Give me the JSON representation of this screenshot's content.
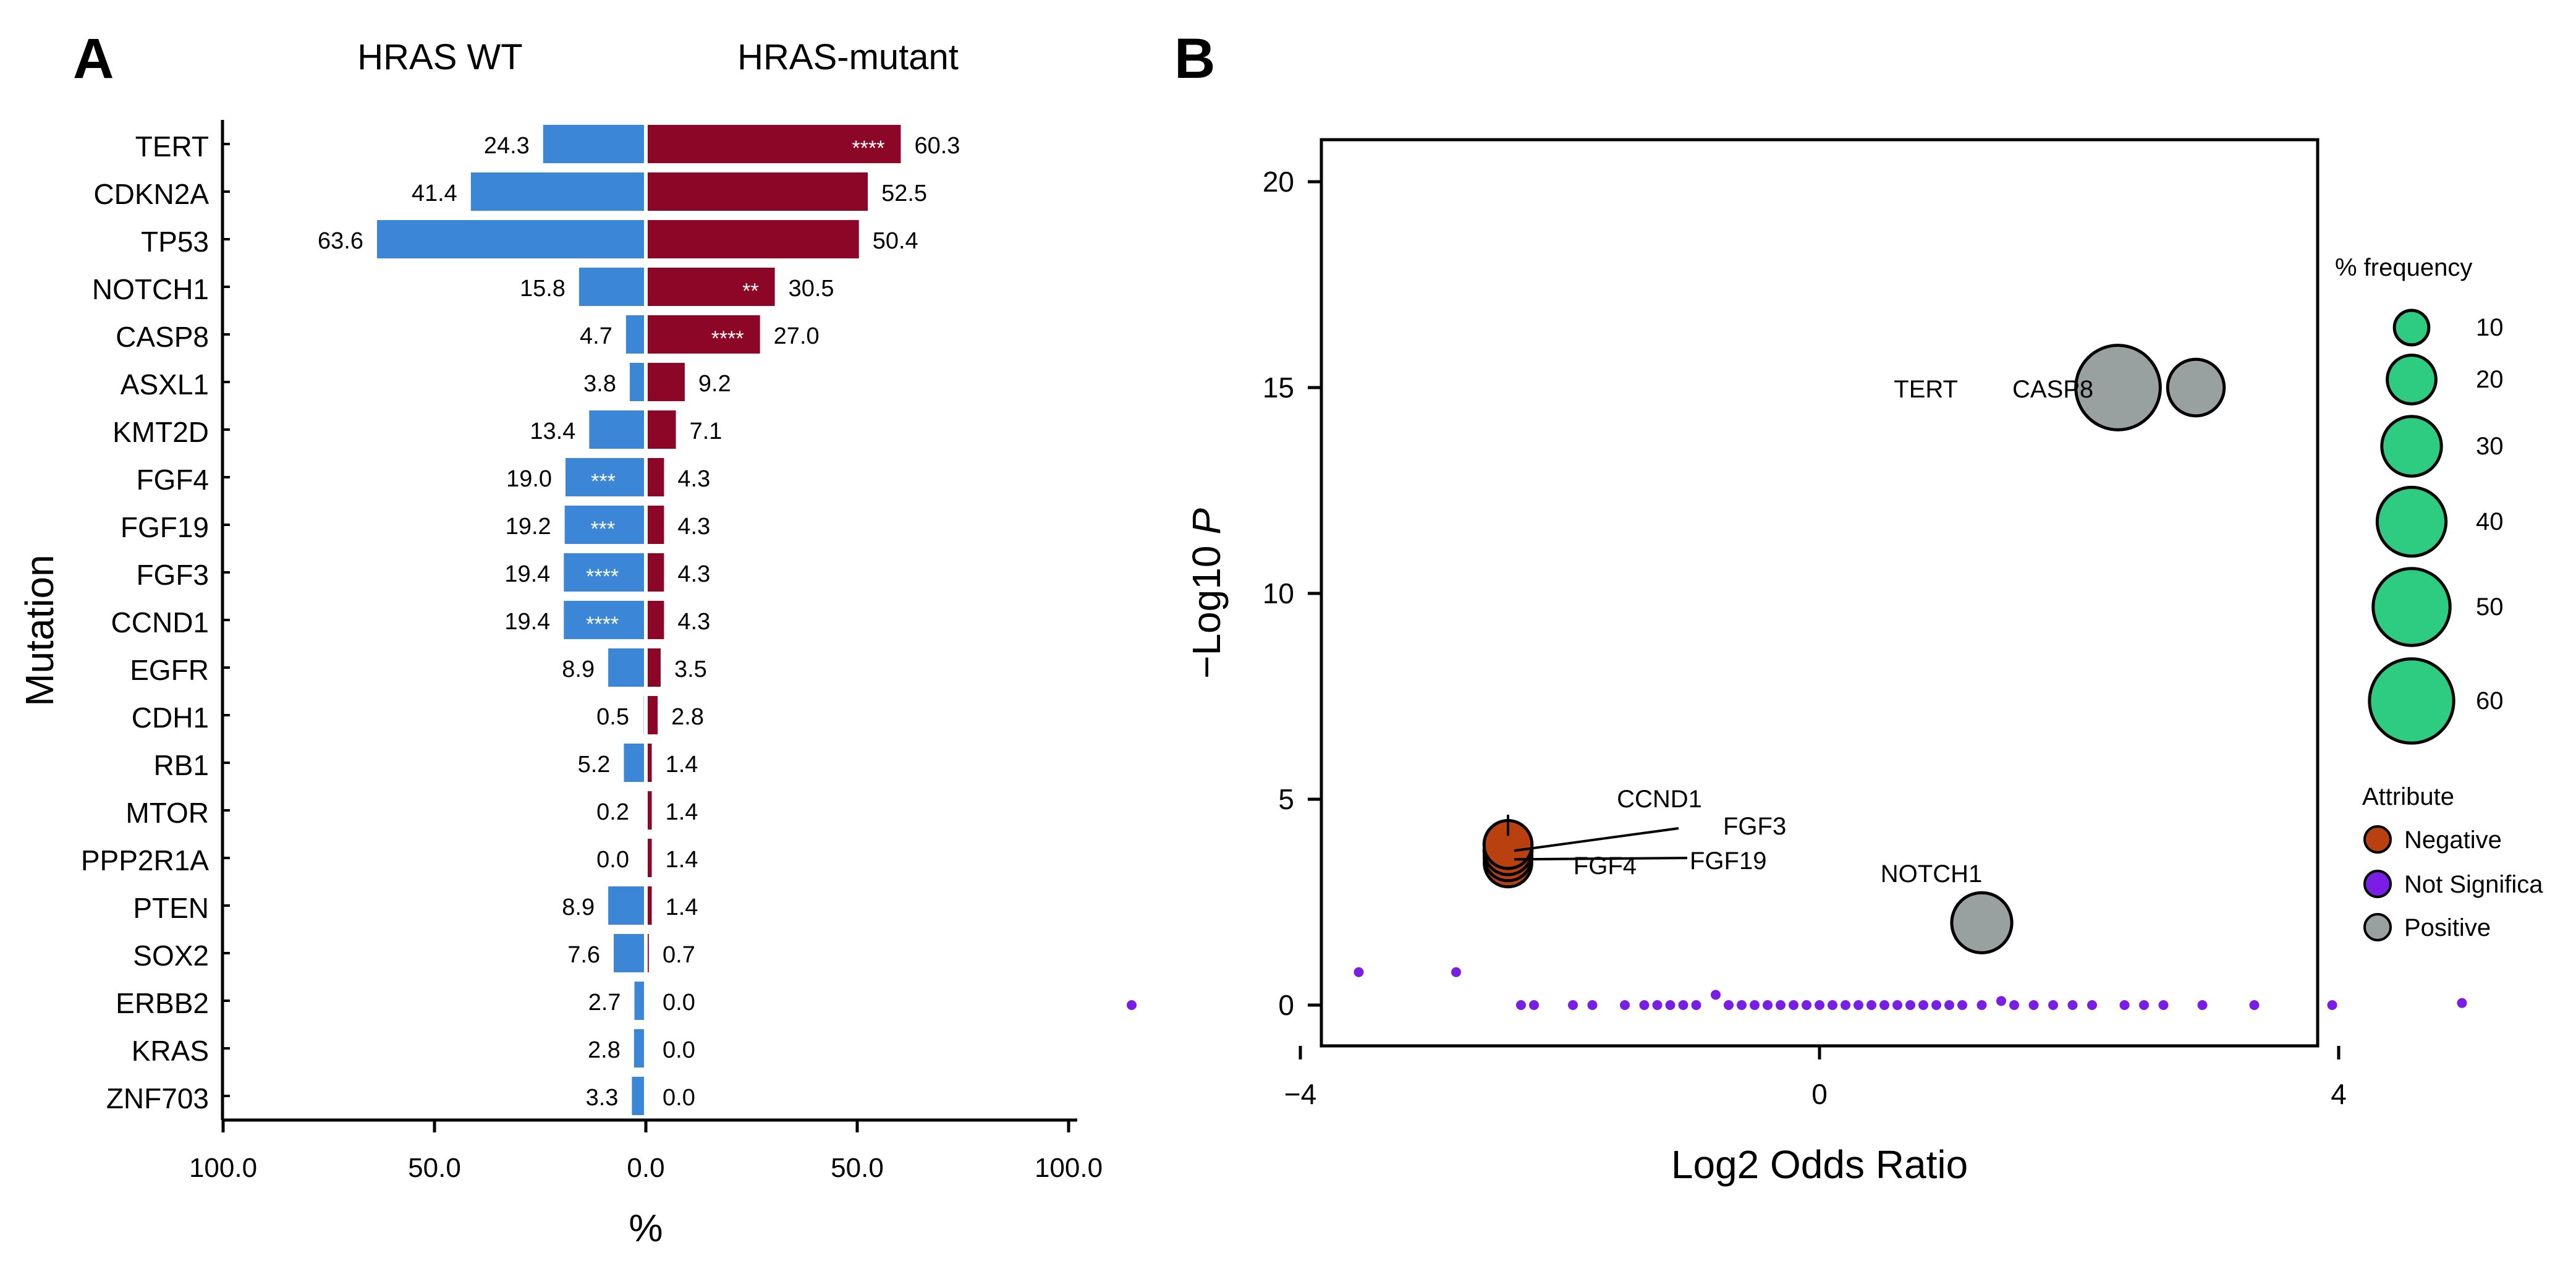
{
  "panels": {
    "a_label": "A",
    "b_label": "B"
  },
  "colors": {
    "wt": "#3b86d6",
    "mutant": "#8c0727",
    "negative": "#b8410f",
    "not_significant": "#7a1ee6",
    "positive": "#98a0a0",
    "freq_legend_fill": "#2ecc80"
  },
  "chart_data": [
    {
      "type": "bar",
      "orientation": "horizontal-diverging",
      "left_group_title": "HRAS WT",
      "right_group_title": "HRAS-mutant",
      "ylabel": "Mutation",
      "xlabel": "%",
      "xlim": [
        -100,
        100
      ],
      "xticks": [
        "100.0",
        "50.0",
        "0.0",
        "50.0",
        "100.0"
      ],
      "categories": [
        "TERT",
        "CDKN2A",
        "TP53",
        "NOTCH1",
        "CASP8",
        "ASXL1",
        "KMT2D",
        "FGF4",
        "FGF19",
        "FGF3",
        "CCND1",
        "EGFR",
        "CDH1",
        "RB1",
        "MTOR",
        "PPP2R1A",
        "PTEN",
        "SOX2",
        "ERBB2",
        "KRAS",
        "ZNF703"
      ],
      "series": [
        {
          "name": "HRAS WT",
          "values": [
            24.3,
            41.4,
            63.6,
            15.8,
            4.7,
            3.8,
            13.4,
            19.0,
            19.2,
            19.4,
            19.4,
            8.9,
            0.5,
            5.2,
            0.2,
            0.0,
            8.9,
            7.6,
            2.7,
            2.8,
            3.3
          ],
          "labels": [
            "24.3",
            "41.4",
            "63.6",
            "15.8",
            "4.7",
            "3.8",
            "13.4",
            "19.0",
            "19.2",
            "19.4",
            "19.4",
            "8.9",
            "0.5",
            "5.2",
            "0.2",
            "0.0",
            "8.9",
            "7.6",
            "2.7",
            "2.8",
            "3.3"
          ],
          "significance": [
            "",
            "",
            "",
            "",
            "",
            "",
            "",
            "***",
            "***",
            "****",
            "****",
            "",
            "",
            "",
            "",
            "",
            "",
            "",
            "",
            "",
            ""
          ]
        },
        {
          "name": "HRAS-mutant",
          "values": [
            60.3,
            52.5,
            50.4,
            30.5,
            27.0,
            9.2,
            7.1,
            4.3,
            4.3,
            4.3,
            4.3,
            3.5,
            2.8,
            1.4,
            1.4,
            1.4,
            1.4,
            0.7,
            0.0,
            0.0,
            0.0
          ],
          "labels": [
            "60.3",
            "52.5",
            "50.4",
            "30.5",
            "27.0",
            "9.2",
            "7.1",
            "4.3",
            "4.3",
            "4.3",
            "4.3",
            "3.5",
            "2.8",
            "1.4",
            "1.4",
            "1.4",
            "1.4",
            "0.7",
            "0.0",
            "0.0",
            "0.0"
          ],
          "significance": [
            "****",
            "",
            "",
            "**",
            "****",
            "",
            "",
            "",
            "",
            "",
            "",
            "",
            "",
            "",
            "",
            "",
            "",
            "",
            "",
            "",
            ""
          ]
        }
      ]
    },
    {
      "type": "scatter",
      "xlabel": "Log2 Odds Ratio",
      "ylabel_prefix": "−Log10 ",
      "ylabel_italic": "P",
      "xlim": [
        -7.3,
        7.7
      ],
      "ylim": [
        -1,
        21
      ],
      "xticks": [
        {
          "v": -4,
          "label": "−4"
        },
        {
          "v": 0,
          "label": "0"
        },
        {
          "v": 4,
          "label": "4"
        }
      ],
      "yticks": [
        {
          "v": 0,
          "label": "0"
        },
        {
          "v": 5,
          "label": "5"
        },
        {
          "v": 10,
          "label": "10"
        },
        {
          "v": 15,
          "label": "15"
        },
        {
          "v": 20,
          "label": "20"
        }
      ],
      "labeled_points": [
        {
          "label": "TERT",
          "x": 2.3,
          "y": 15.0,
          "freq": 60.3,
          "attribute": "Positive"
        },
        {
          "label": "CASP8",
          "x": 2.9,
          "y": 15.0,
          "freq": 27.0,
          "attribute": "Positive"
        },
        {
          "label": "NOTCH1",
          "x": 1.25,
          "y": 2.0,
          "freq": 30.5,
          "attribute": "Positive"
        },
        {
          "label": "CCND1",
          "x": -2.4,
          "y": 3.9,
          "freq": 19.4,
          "attribute": "Negative"
        },
        {
          "label": "FGF3",
          "x": -2.4,
          "y": 3.75,
          "freq": 19.4,
          "attribute": "Negative"
        },
        {
          "label": "FGF19",
          "x": -2.4,
          "y": 3.6,
          "freq": 19.2,
          "attribute": "Negative"
        },
        {
          "label": "FGF4",
          "x": -2.4,
          "y": 3.45,
          "freq": 19.0,
          "attribute": "Negative"
        }
      ],
      "not_significant_points": [
        {
          "x": -5.3,
          "y": 0.0
        },
        {
          "x": -3.55,
          "y": 0.8
        },
        {
          "x": -2.8,
          "y": 0.8
        },
        {
          "x": -2.3,
          "y": 0.0
        },
        {
          "x": -2.2,
          "y": 0.0
        },
        {
          "x": -1.9,
          "y": 0.0
        },
        {
          "x": -1.75,
          "y": 0.0
        },
        {
          "x": -1.5,
          "y": 0.0
        },
        {
          "x": -1.35,
          "y": 0.0
        },
        {
          "x": -1.25,
          "y": 0.0
        },
        {
          "x": -1.15,
          "y": 0.0
        },
        {
          "x": -1.05,
          "y": 0.0
        },
        {
          "x": -0.95,
          "y": 0.0
        },
        {
          "x": -0.8,
          "y": 0.25
        },
        {
          "x": -0.7,
          "y": 0.0
        },
        {
          "x": -0.6,
          "y": 0.0
        },
        {
          "x": -0.5,
          "y": 0.0
        },
        {
          "x": -0.4,
          "y": 0.0
        },
        {
          "x": -0.3,
          "y": 0.0
        },
        {
          "x": -0.2,
          "y": 0.0
        },
        {
          "x": -0.1,
          "y": 0.0
        },
        {
          "x": 0.0,
          "y": 0.0
        },
        {
          "x": 0.1,
          "y": 0.0
        },
        {
          "x": 0.2,
          "y": 0.0
        },
        {
          "x": 0.3,
          "y": 0.0
        },
        {
          "x": 0.4,
          "y": 0.0
        },
        {
          "x": 0.5,
          "y": 0.0
        },
        {
          "x": 0.6,
          "y": 0.0
        },
        {
          "x": 0.7,
          "y": 0.0
        },
        {
          "x": 0.8,
          "y": 0.0
        },
        {
          "x": 0.9,
          "y": 0.0
        },
        {
          "x": 1.0,
          "y": 0.0
        },
        {
          "x": 1.1,
          "y": 0.0
        },
        {
          "x": 1.25,
          "y": 0.0
        },
        {
          "x": 1.4,
          "y": 0.1
        },
        {
          "x": 1.5,
          "y": 0.0
        },
        {
          "x": 1.65,
          "y": 0.0
        },
        {
          "x": 1.8,
          "y": 0.0
        },
        {
          "x": 1.95,
          "y": 0.0
        },
        {
          "x": 2.1,
          "y": 0.0
        },
        {
          "x": 2.35,
          "y": 0.0
        },
        {
          "x": 2.5,
          "y": 0.0
        },
        {
          "x": 2.65,
          "y": 0.0
        },
        {
          "x": 2.95,
          "y": 0.0
        },
        {
          "x": 3.35,
          "y": 0.0
        },
        {
          "x": 3.95,
          "y": 0.0
        },
        {
          "x": 4.95,
          "y": 0.05
        }
      ],
      "legend_size": {
        "title": "% frequency",
        "items": [
          {
            "value": 10,
            "label": "10"
          },
          {
            "value": 20,
            "label": "20"
          },
          {
            "value": 30,
            "label": "30"
          },
          {
            "value": 40,
            "label": "40"
          },
          {
            "value": 50,
            "label": "50"
          },
          {
            "value": 60,
            "label": "60"
          }
        ]
      },
      "legend_attribute": {
        "title": "Attribute",
        "items": [
          {
            "key": "Negative",
            "label": "Negative"
          },
          {
            "key": "Not Significant",
            "label": "Not Significa"
          },
          {
            "key": "Positive",
            "label": "Positive"
          }
        ]
      }
    }
  ]
}
